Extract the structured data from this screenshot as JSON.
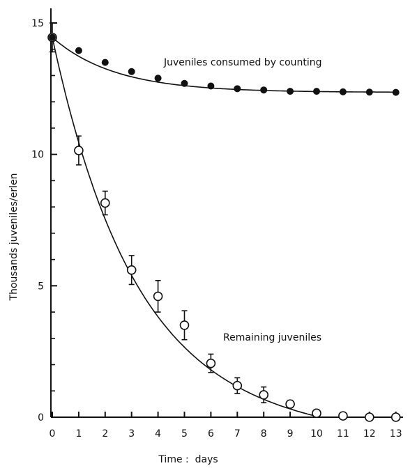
{
  "chart_data": {
    "type": "line",
    "xlabel": "Time :  days",
    "ylabel": "Thousands juveniles/erlen",
    "xlim": [
      0,
      13.5
    ],
    "ylim": [
      0,
      15.3
    ],
    "x_ticks": [
      0,
      1,
      2,
      3,
      4,
      5,
      6,
      7,
      8,
      9,
      10,
      11,
      12,
      13
    ],
    "x_tick_labels": [
      "0",
      "1",
      "2",
      "3",
      "4",
      "5",
      "6",
      "7",
      "8",
      "9",
      "10",
      "11",
      "12",
      "13"
    ],
    "y_major_ticks": [
      0,
      5,
      10,
      15
    ],
    "y_tick_labels": [
      "0",
      "5",
      "10",
      "15"
    ],
    "y_minor_ticks": [
      1,
      2,
      3,
      4,
      6,
      7,
      8,
      9,
      11,
      12,
      13,
      14
    ],
    "grid": false,
    "series": [
      {
        "name": "Juveniles consumed by counting",
        "marker": "filled-circle",
        "x": [
          0,
          1,
          2,
          3,
          4,
          5,
          6,
          7,
          8,
          9,
          10,
          11,
          12,
          13
        ],
        "y": [
          14.45,
          13.95,
          13.5,
          13.15,
          12.9,
          12.7,
          12.6,
          12.5,
          12.45,
          12.4,
          12.4,
          12.38,
          12.37,
          12.36
        ]
      },
      {
        "name": "Remaining juveniles",
        "marker": "open-circle",
        "x": [
          0,
          1,
          2,
          3,
          4,
          5,
          6,
          7,
          8,
          9,
          10,
          11,
          12,
          13
        ],
        "y": [
          14.45,
          10.15,
          8.15,
          5.6,
          4.6,
          3.5,
          2.05,
          1.2,
          0.85,
          0.5,
          0.15,
          0.05,
          0.0,
          0.0
        ],
        "error": [
          0.55,
          0.55,
          0.45,
          0.55,
          0.6,
          0.55,
          0.35,
          0.3,
          0.3,
          0,
          0,
          0,
          0,
          0
        ]
      }
    ],
    "annotations": [
      "Juveniles consumed by counting",
      "Remaining juveniles"
    ]
  }
}
